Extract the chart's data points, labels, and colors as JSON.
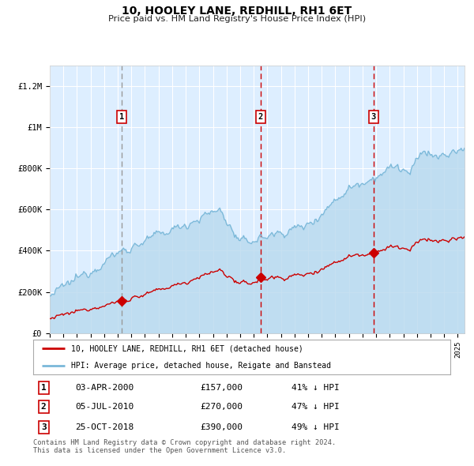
{
  "title": "10, HOOLEY LANE, REDHILL, RH1 6ET",
  "subtitle": "Price paid vs. HM Land Registry's House Price Index (HPI)",
  "bg_color": "#ddeeff",
  "hpi_color": "#7ab8d9",
  "hpi_fill_color": "#b8d9ee",
  "price_color": "#cc0000",
  "vline_color_1": "#999999",
  "vline_color_23": "#cc0000",
  "sales": [
    {
      "label": "1",
      "date_num": 2000.27,
      "price": 157000,
      "text": "03-APR-2000",
      "pct": "41% ↓ HPI"
    },
    {
      "label": "2",
      "date_num": 2010.5,
      "price": 270000,
      "text": "05-JUL-2010",
      "pct": "47% ↓ HPI"
    },
    {
      "label": "3",
      "date_num": 2018.8,
      "price": 390000,
      "text": "25-OCT-2018",
      "pct": "49% ↓ HPI"
    }
  ],
  "legend_line1": "10, HOOLEY LANE, REDHILL, RH1 6ET (detached house)",
  "legend_line2": "HPI: Average price, detached house, Reigate and Banstead",
  "footer": "Contains HM Land Registry data © Crown copyright and database right 2024.\nThis data is licensed under the Open Government Licence v3.0.",
  "ylim": [
    0,
    1300000
  ],
  "xlim_start": 1995.0,
  "xlim_end": 2025.5,
  "yticks": [
    0,
    200000,
    400000,
    600000,
    800000,
    1000000,
    1200000
  ],
  "ytick_labels": [
    "£0",
    "£200K",
    "£400K",
    "£600K",
    "£800K",
    "£1M",
    "£1.2M"
  ]
}
